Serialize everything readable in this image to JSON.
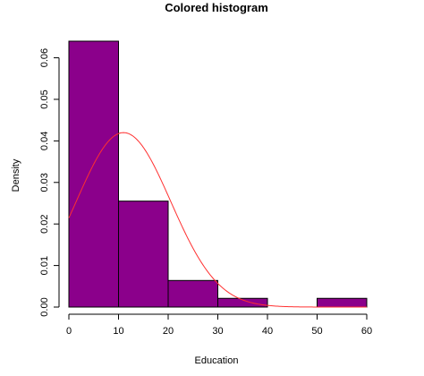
{
  "chart_data": {
    "type": "bar",
    "title": "Colored histogram",
    "xlabel": "Education",
    "ylabel": "Density",
    "xlim": [
      0,
      60
    ],
    "ylim": [
      0,
      0.064
    ],
    "x_ticks": [
      "0",
      "10",
      "20",
      "30",
      "40",
      "50",
      "60"
    ],
    "y_ticks": [
      "0.00",
      "0.01",
      "0.02",
      "0.03",
      "0.04",
      "0.05",
      "0.06"
    ],
    "bins": [
      {
        "start": 0,
        "end": 10,
        "density": 0.064
      },
      {
        "start": 10,
        "end": 20,
        "density": 0.0255
      },
      {
        "start": 20,
        "end": 30,
        "density": 0.0064
      },
      {
        "start": 30,
        "end": 40,
        "density": 0.0021
      },
      {
        "start": 40,
        "end": 50,
        "density": 0
      },
      {
        "start": 50,
        "end": 60,
        "density": 0.0021
      }
    ],
    "density_curve": {
      "type": "normal",
      "mean": 11,
      "sd": 9.5
    },
    "bar_color": "#8B008B",
    "curve_color": "#FF3030",
    "grid": false
  }
}
